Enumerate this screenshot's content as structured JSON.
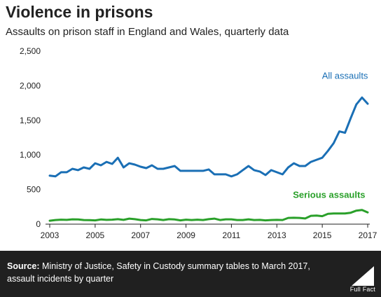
{
  "title": "Violence in prisons",
  "subtitle": "Assaults on prison staff in England and Wales, quarterly data",
  "source": {
    "label": "Source:",
    "text": "Ministry of Justice, Safety in Custody summary tables to March 2017, assault incidents by quarter"
  },
  "logo": {
    "text": "Full Fact"
  },
  "colors": {
    "all_assaults": "#1a6fb5",
    "serious_assaults": "#2aa02a",
    "axis": "#222222",
    "grid": "#dddddd",
    "footer_bg": "#202020"
  },
  "chart_data": {
    "type": "line",
    "title": "",
    "xlabel": "",
    "ylabel": "",
    "xlim": [
      2003,
      2017
    ],
    "ylim": [
      0,
      2500
    ],
    "x_ticks": [
      2003,
      2005,
      2007,
      2009,
      2011,
      2013,
      2015,
      2017
    ],
    "y_ticks": [
      0,
      500,
      1000,
      1500,
      2000,
      2500
    ],
    "y_tick_labels": [
      "0",
      "500",
      "1,000",
      "1,500",
      "2,000",
      "2,500"
    ],
    "grid": false,
    "series": [
      {
        "name": "All assaults",
        "color": "#1a6fb5",
        "x": [
          2003.0,
          2003.25,
          2003.5,
          2003.75,
          2004.0,
          2004.25,
          2004.5,
          2004.75,
          2005.0,
          2005.25,
          2005.5,
          2005.75,
          2006.0,
          2006.25,
          2006.5,
          2006.75,
          2007.0,
          2007.25,
          2007.5,
          2007.75,
          2008.0,
          2008.25,
          2008.5,
          2008.75,
          2009.0,
          2009.25,
          2009.5,
          2009.75,
          2010.0,
          2010.25,
          2010.5,
          2010.75,
          2011.0,
          2011.25,
          2011.5,
          2011.75,
          2012.0,
          2012.25,
          2012.5,
          2012.75,
          2013.0,
          2013.25,
          2013.5,
          2013.75,
          2014.0,
          2014.25,
          2014.5,
          2014.75,
          2015.0,
          2015.25,
          2015.5,
          2015.75,
          2016.0,
          2016.25,
          2016.5,
          2016.75,
          2017.0
        ],
        "values": [
          700,
          690,
          750,
          750,
          800,
          780,
          820,
          800,
          880,
          850,
          900,
          870,
          960,
          820,
          880,
          860,
          830,
          810,
          850,
          800,
          800,
          820,
          840,
          770,
          770,
          770,
          770,
          770,
          790,
          720,
          720,
          720,
          690,
          720,
          780,
          840,
          780,
          760,
          710,
          780,
          750,
          720,
          820,
          880,
          840,
          840,
          900,
          930,
          960,
          1060,
          1170,
          1340,
          1320,
          1530,
          1730,
          1830,
          1740
        ]
      },
      {
        "name": "Serious assaults",
        "color": "#2aa02a",
        "x": [
          2003.0,
          2003.25,
          2003.5,
          2003.75,
          2004.0,
          2004.25,
          2004.5,
          2004.75,
          2005.0,
          2005.25,
          2005.5,
          2005.75,
          2006.0,
          2006.25,
          2006.5,
          2006.75,
          2007.0,
          2007.25,
          2007.5,
          2007.75,
          2008.0,
          2008.25,
          2008.5,
          2008.75,
          2009.0,
          2009.25,
          2009.5,
          2009.75,
          2010.0,
          2010.25,
          2010.5,
          2010.75,
          2011.0,
          2011.25,
          2011.5,
          2011.75,
          2012.0,
          2012.25,
          2012.5,
          2012.75,
          2013.0,
          2013.25,
          2013.5,
          2013.75,
          2014.0,
          2014.25,
          2014.5,
          2014.75,
          2015.0,
          2015.25,
          2015.5,
          2015.75,
          2016.0,
          2016.25,
          2016.5,
          2016.75,
          2017.0
        ],
        "values": [
          50,
          60,
          65,
          62,
          70,
          68,
          60,
          58,
          55,
          68,
          62,
          65,
          72,
          62,
          80,
          72,
          60,
          55,
          75,
          70,
          60,
          72,
          68,
          55,
          65,
          60,
          65,
          60,
          72,
          80,
          60,
          70,
          70,
          60,
          60,
          70,
          60,
          62,
          55,
          60,
          62,
          60,
          90,
          92,
          90,
          82,
          120,
          125,
          115,
          150,
          155,
          155,
          155,
          165,
          195,
          205,
          170
        ]
      }
    ],
    "annotations": [
      {
        "text": "All assaults",
        "series": 0,
        "x": 2016.0,
        "y": 2100
      },
      {
        "text": "Serious assaults",
        "series": 1,
        "x": 2015.3,
        "y": 380
      }
    ]
  }
}
